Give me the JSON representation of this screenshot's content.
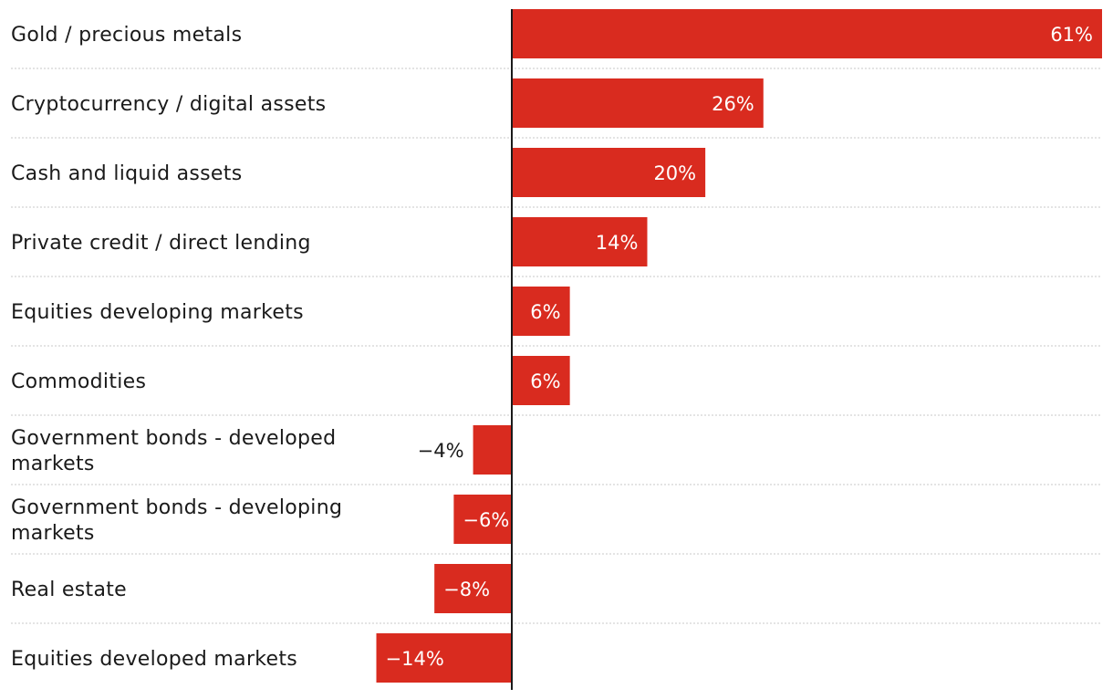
{
  "chart_data": {
    "type": "bar",
    "orientation": "horizontal",
    "title": "",
    "xlabel": "",
    "ylabel": "",
    "xlim": [
      -14,
      61
    ],
    "bar_color": "#d92b1f",
    "categories": [
      "Gold / precious metals",
      "Cryptocurrency / digital assets",
      "Cash and liquid assets",
      "Private credit / direct lending",
      "Equities developing markets",
      "Commodities",
      "Government bonds - developed markets",
      "Government bonds - developing markets",
      "Real estate",
      "Equities developed markets"
    ],
    "values": [
      61,
      26,
      20,
      14,
      6,
      6,
      -4,
      -6,
      -8,
      -14
    ],
    "data_labels": [
      "61%",
      "26%",
      "20%",
      "14%",
      "6%",
      "6%",
      "−4%",
      "−6%",
      "−8%",
      "−14%"
    ]
  }
}
